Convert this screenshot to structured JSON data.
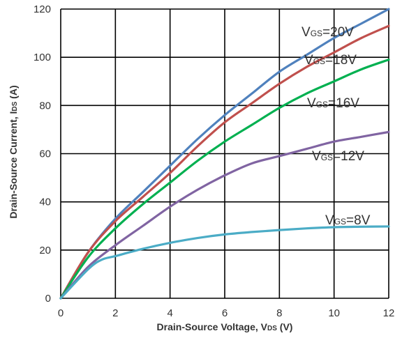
{
  "chart_data": {
    "type": "line",
    "xlabel": {
      "prefix": "Drain-Source Voltage, V",
      "sub": "DS",
      "suffix": " (V)"
    },
    "ylabel": {
      "prefix": "Drain-Source Current, I",
      "sub": "DS",
      "suffix": " (A)"
    },
    "xlim": [
      0,
      12
    ],
    "ylim": [
      0,
      120
    ],
    "x_ticks": [
      "0",
      "2",
      "4",
      "6",
      "8",
      "10",
      "12"
    ],
    "y_ticks": [
      "0",
      "20",
      "40",
      "60",
      "80",
      "100",
      "120"
    ],
    "grid": true,
    "series": [
      {
        "name": "VGS=20V",
        "label_prefix": "V",
        "label_sub": "GS",
        "label_suffix": "=20V",
        "color": "#4F81BD",
        "x": [
          0,
          1,
          2,
          3,
          4,
          5,
          6,
          7,
          8,
          9,
          10,
          11,
          12
        ],
        "y": [
          0,
          19,
          33,
          44,
          55,
          66,
          76,
          85,
          94,
          101,
          108,
          114,
          120
        ]
      },
      {
        "name": "VGS=18V",
        "label_prefix": "V",
        "label_sub": "GS",
        "label_suffix": "=18V",
        "color": "#C0504D",
        "x": [
          0,
          1,
          2,
          3,
          4,
          5,
          6,
          7,
          8,
          9,
          10,
          11,
          12
        ],
        "y": [
          0,
          19,
          32,
          42,
          52,
          63,
          73,
          81,
          89,
          96,
          102,
          108,
          113
        ]
      },
      {
        "name": "VGS=16V",
        "label_prefix": "V",
        "label_sub": "GS",
        "label_suffix": "=16V",
        "color": "#00B050",
        "x": [
          0,
          1,
          2,
          3,
          4,
          5,
          6,
          7,
          8,
          9,
          10,
          11,
          12
        ],
        "y": [
          0,
          17,
          29,
          39,
          48,
          57,
          65,
          72,
          79,
          85,
          90,
          95,
          99
        ]
      },
      {
        "name": "VGS=12V",
        "label_prefix": "V",
        "label_sub": "GS",
        "label_suffix": "=12V",
        "color": "#8064A2",
        "x": [
          0,
          1,
          2,
          3,
          4,
          5,
          6,
          7,
          8,
          9,
          10,
          11,
          12
        ],
        "y": [
          0,
          13,
          22,
          30,
          38,
          45,
          51,
          56,
          59,
          62,
          65,
          67,
          69
        ]
      },
      {
        "name": "VGS=8V",
        "label_prefix": "V",
        "label_sub": "GS",
        "label_suffix": "=8V",
        "color": "#4BACC6",
        "x": [
          0,
          1,
          1.5,
          2,
          3,
          4,
          5,
          6,
          7,
          8,
          9,
          10,
          11,
          12
        ],
        "y": [
          0,
          12,
          16,
          17.5,
          20.5,
          23,
          25,
          26.5,
          27.5,
          28.3,
          29,
          29.5,
          29.7,
          29.8
        ]
      }
    ]
  }
}
